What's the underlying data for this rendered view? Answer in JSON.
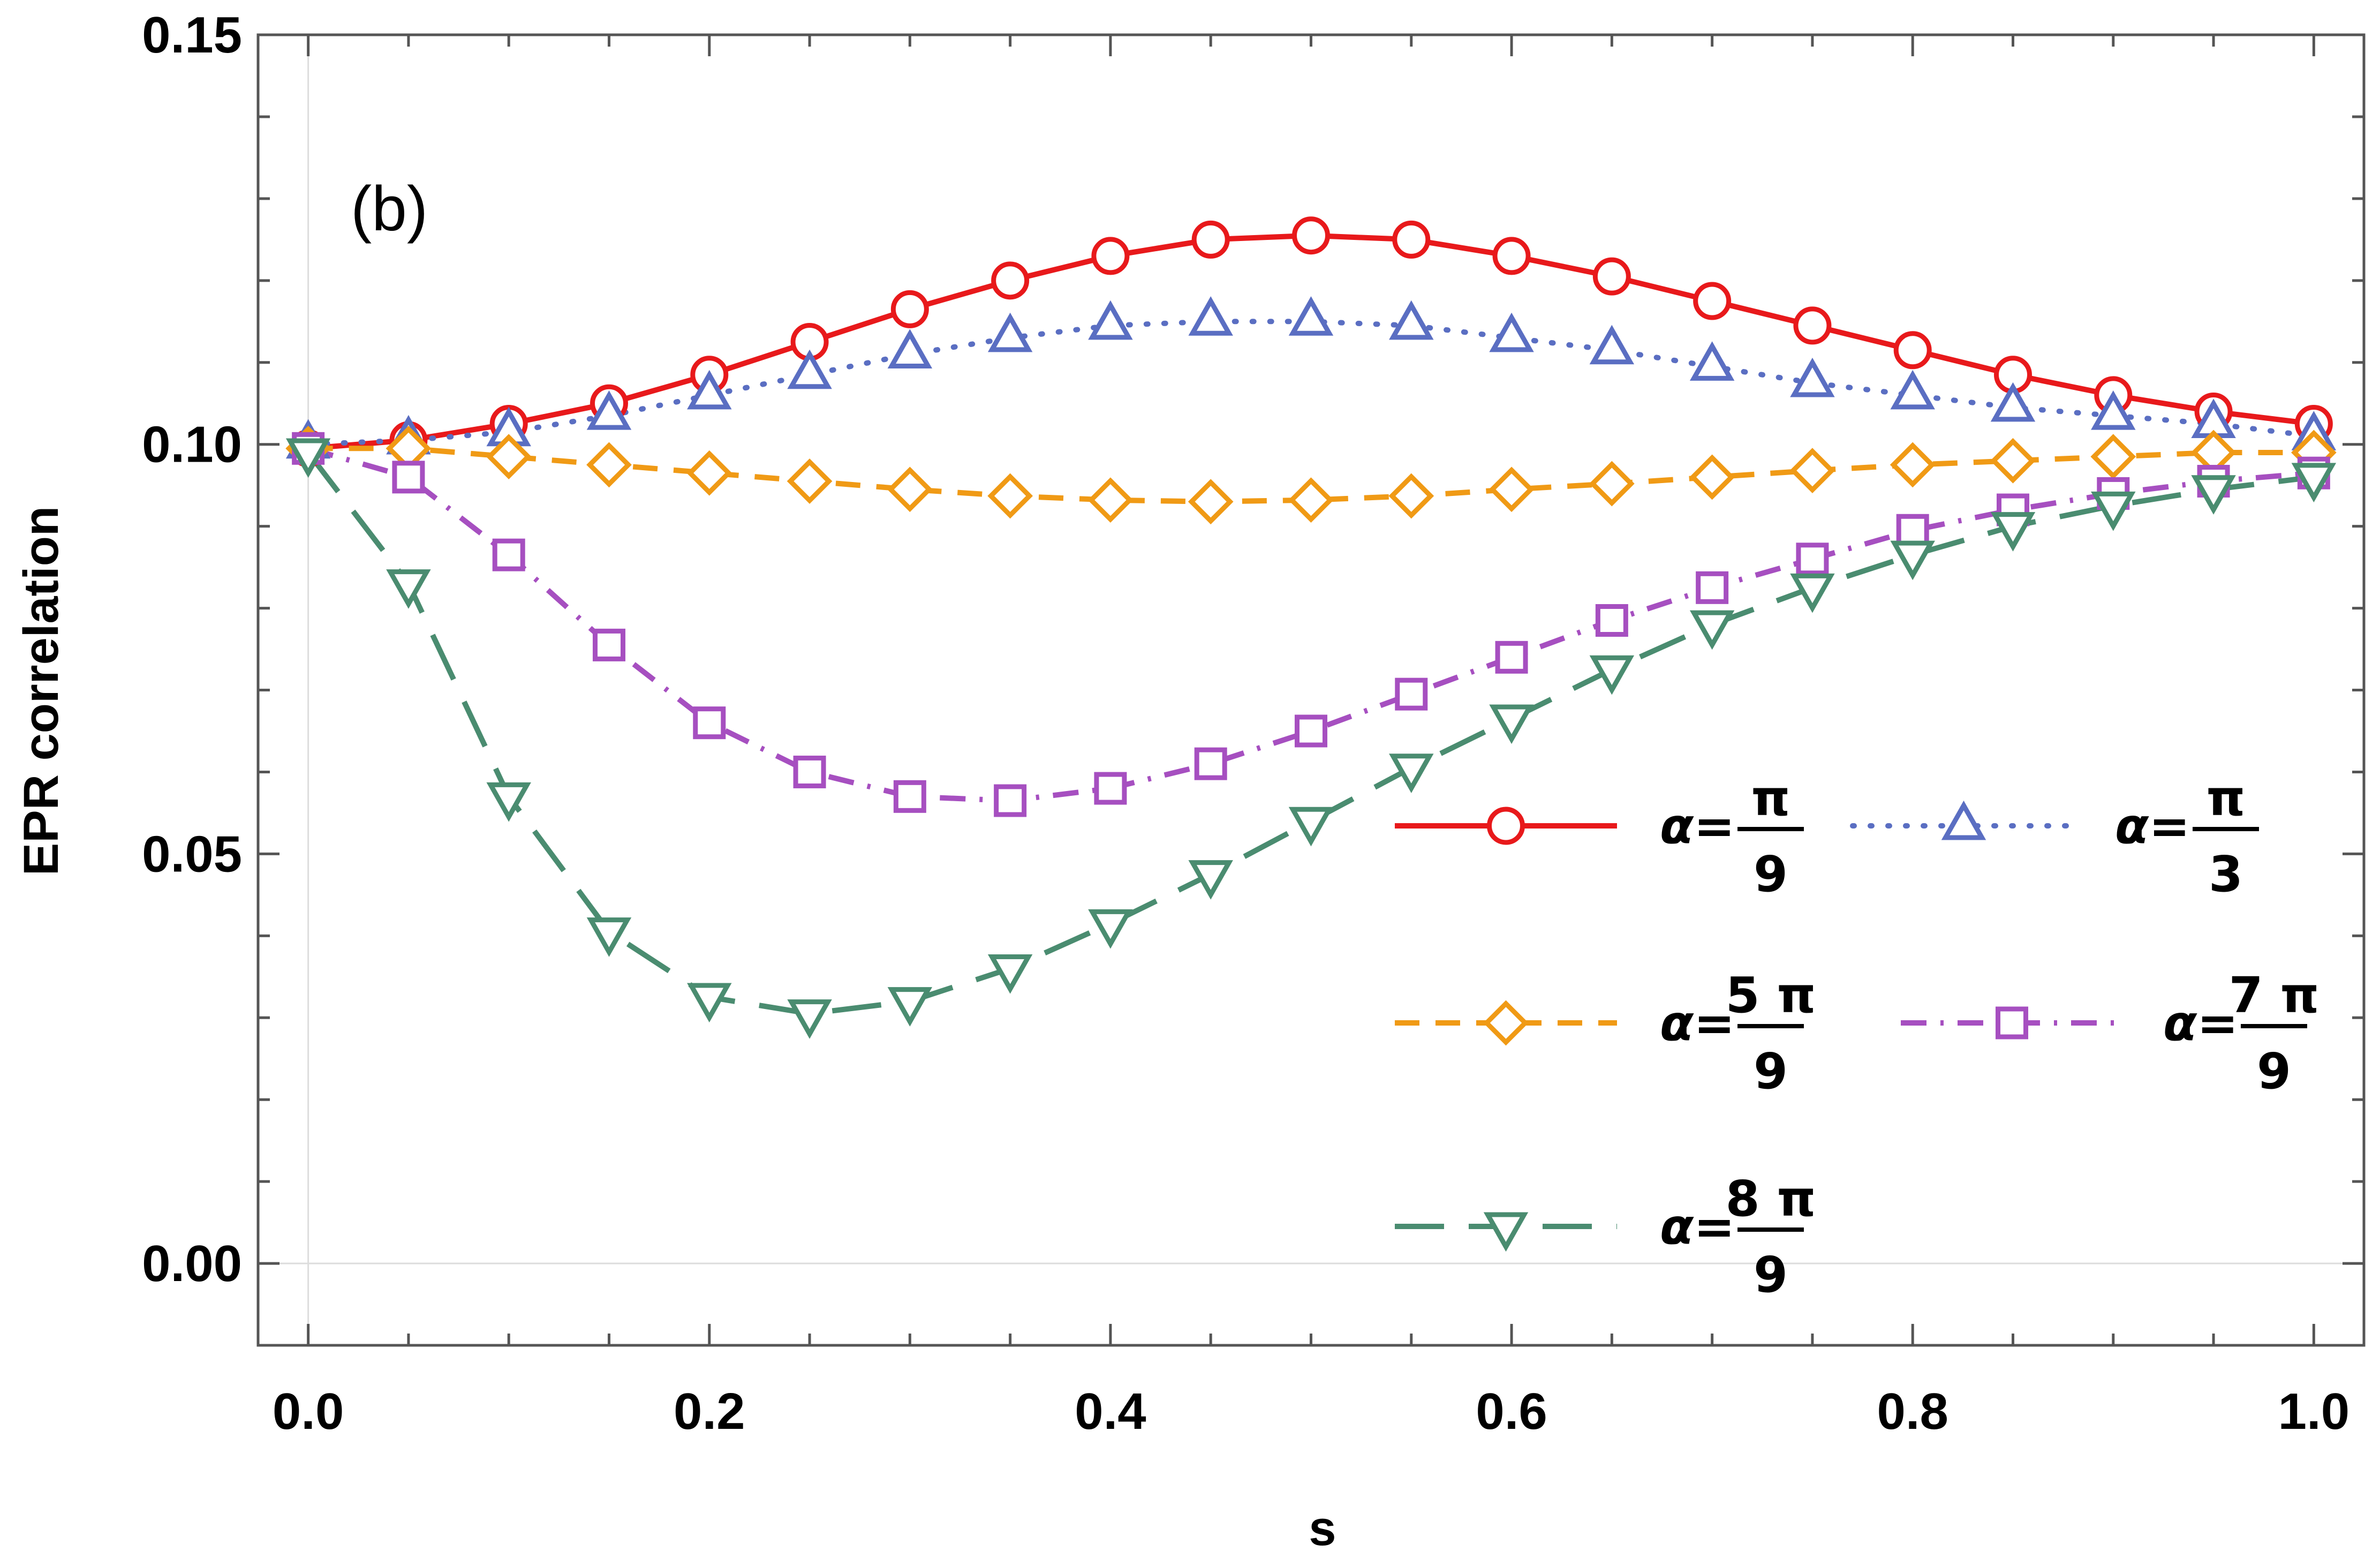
{
  "chart_data": {
    "type": "line",
    "title": "",
    "panel_label": "(b)",
    "xlabel": "s",
    "ylabel": "EPR correlation",
    "xlim": [
      -0.025,
      1.025
    ],
    "ylim": [
      -0.01,
      0.15
    ],
    "xticks": [
      0.0,
      0.2,
      0.4,
      0.6,
      0.8,
      1.0
    ],
    "xtick_labels": [
      "0.0",
      "0.2",
      "0.4",
      "0.6",
      "0.8",
      "1.0"
    ],
    "yticks": [
      0.0,
      0.05,
      0.1,
      0.15
    ],
    "ytick_labels": [
      "0.00",
      "0.05",
      "0.10",
      "0.15"
    ],
    "legend_position": "center-right",
    "x": [
      0.0,
      0.05,
      0.1,
      0.15,
      0.2,
      0.25,
      0.3,
      0.35,
      0.4,
      0.45,
      0.5,
      0.55,
      0.6,
      0.65,
      0.7,
      0.75,
      0.8,
      0.85,
      0.9,
      0.95,
      1.0
    ],
    "series": [
      {
        "name": "α=π/9",
        "label_prefix": "α=",
        "numerator": "π",
        "denominator": "9",
        "color": "#e8191b",
        "marker": "circle",
        "dash": "solid",
        "values": [
          0.0995,
          0.1005,
          0.1025,
          0.105,
          0.1085,
          0.1125,
          0.1165,
          0.12,
          0.123,
          0.125,
          0.1255,
          0.125,
          0.123,
          0.1205,
          0.1175,
          0.1145,
          0.1115,
          0.1085,
          0.106,
          0.104,
          0.1025
        ]
      },
      {
        "name": "α=π/3",
        "label_prefix": "α=",
        "numerator": "π",
        "denominator": "3",
        "color": "#5a6ec2",
        "marker": "triangle-up",
        "dash": "dotted",
        "values": [
          0.1,
          0.1005,
          0.1015,
          0.1035,
          0.106,
          0.1085,
          0.111,
          0.113,
          0.1145,
          0.115,
          0.115,
          0.1145,
          0.113,
          0.1115,
          0.1095,
          0.1075,
          0.106,
          0.1045,
          0.1035,
          0.1025,
          0.101
        ]
      },
      {
        "name": "α=5π/9",
        "label_prefix": "α=",
        "numerator": "5 π",
        "denominator": "9",
        "color": "#f09a15",
        "marker": "diamond",
        "dash": "dashed",
        "values": [
          0.0995,
          0.0995,
          0.0985,
          0.0975,
          0.0965,
          0.0955,
          0.0945,
          0.0937,
          0.0932,
          0.093,
          0.0932,
          0.0937,
          0.0945,
          0.0952,
          0.096,
          0.0968,
          0.0975,
          0.098,
          0.0985,
          0.099,
          0.099
        ]
      },
      {
        "name": "α=7π/9",
        "label_prefix": "α=",
        "numerator": "7 π",
        "denominator": "9",
        "color": "#a64fc0",
        "marker": "square",
        "dash": "dashdot",
        "values": [
          0.0995,
          0.096,
          0.0865,
          0.0755,
          0.066,
          0.06,
          0.057,
          0.0565,
          0.058,
          0.061,
          0.065,
          0.0695,
          0.074,
          0.0785,
          0.0825,
          0.086,
          0.0895,
          0.092,
          0.094,
          0.0955,
          0.0965
        ]
      },
      {
        "name": "α=8π/9",
        "label_prefix": "α=",
        "numerator": "8 π",
        "denominator": "9",
        "color": "#4a8c70",
        "marker": "triangle-down",
        "dash": "longdash",
        "values": [
          0.099,
          0.083,
          0.057,
          0.0405,
          0.0325,
          0.0305,
          0.032,
          0.036,
          0.0415,
          0.0475,
          0.054,
          0.0605,
          0.0665,
          0.0725,
          0.078,
          0.0825,
          0.0865,
          0.09,
          0.0925,
          0.0945,
          0.096
        ]
      }
    ]
  }
}
